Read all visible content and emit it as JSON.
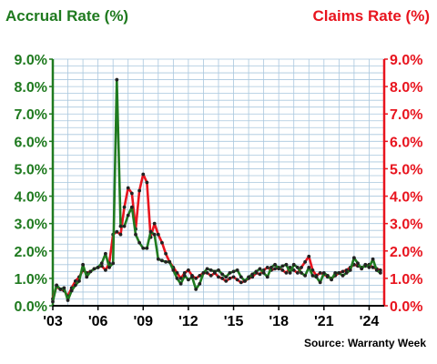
{
  "chart_data": {
    "type": "line",
    "title_left": "Accrual Rate (%)",
    "title_right": "Claims Rate (%)",
    "source": "Source: Warranty Week",
    "colors": {
      "accrual": "#1f7a1f",
      "claims": "#e8141e",
      "grid": "#a9c7de"
    },
    "y_ticks": [
      "0.0%",
      "1.0%",
      "2.0%",
      "3.0%",
      "4.0%",
      "5.0%",
      "6.0%",
      "7.0%",
      "8.0%",
      "9.0%"
    ],
    "x_ticks": [
      {
        "year": 2003,
        "label": "'03"
      },
      {
        "year": 2006,
        "label": "'06"
      },
      {
        "year": 2009,
        "label": "'09"
      },
      {
        "year": 2012,
        "label": "'12"
      },
      {
        "year": 2015,
        "label": "'15"
      },
      {
        "year": 2018,
        "label": "'18"
      },
      {
        "year": 2021,
        "label": "'21"
      },
      {
        "year": 2024,
        "label": "'24"
      }
    ],
    "xlim": [
      2003,
      2025
    ],
    "ylim": [
      0,
      9
    ],
    "series": [
      {
        "key": "claims",
        "points": [
          [
            2003.0,
            0.25
          ],
          [
            2003.25,
            0.7
          ],
          [
            2003.5,
            0.6
          ],
          [
            2003.75,
            0.55
          ],
          [
            2004.0,
            0.35
          ],
          [
            2004.25,
            0.65
          ],
          [
            2004.5,
            0.9
          ],
          [
            2004.75,
            1.05
          ],
          [
            2005.0,
            1.3
          ],
          [
            2005.25,
            1.2
          ],
          [
            2005.5,
            1.25
          ],
          [
            2005.75,
            1.35
          ],
          [
            2006.0,
            1.4
          ],
          [
            2006.25,
            1.45
          ],
          [
            2006.5,
            1.3
          ],
          [
            2006.75,
            1.55
          ],
          [
            2007.0,
            2.6
          ],
          [
            2007.25,
            2.7
          ],
          [
            2007.5,
            2.6
          ],
          [
            2007.75,
            3.6
          ],
          [
            2008.0,
            4.3
          ],
          [
            2008.25,
            4.1
          ],
          [
            2008.5,
            2.8
          ],
          [
            2008.75,
            4.2
          ],
          [
            2009.0,
            4.8
          ],
          [
            2009.25,
            4.5
          ],
          [
            2009.5,
            2.5
          ],
          [
            2009.75,
            3.0
          ],
          [
            2010.0,
            2.6
          ],
          [
            2010.25,
            2.3
          ],
          [
            2010.5,
            1.9
          ],
          [
            2010.75,
            1.6
          ],
          [
            2011.0,
            1.4
          ],
          [
            2011.25,
            1.2
          ],
          [
            2011.5,
            1.0
          ],
          [
            2011.75,
            1.2
          ],
          [
            2012.0,
            1.3
          ],
          [
            2012.25,
            1.1
          ],
          [
            2012.5,
            1.0
          ],
          [
            2012.75,
            1.1
          ],
          [
            2013.0,
            1.2
          ],
          [
            2013.25,
            1.2
          ],
          [
            2013.5,
            1.1
          ],
          [
            2013.75,
            1.2
          ],
          [
            2014.0,
            1.05
          ],
          [
            2014.25,
            1.0
          ],
          [
            2014.5,
            0.9
          ],
          [
            2014.75,
            1.0
          ],
          [
            2015.0,
            1.05
          ],
          [
            2015.25,
            0.95
          ],
          [
            2015.5,
            0.85
          ],
          [
            2015.75,
            0.9
          ],
          [
            2016.0,
            1.0
          ],
          [
            2016.25,
            1.05
          ],
          [
            2016.5,
            1.2
          ],
          [
            2016.75,
            1.15
          ],
          [
            2017.0,
            1.3
          ],
          [
            2017.25,
            1.4
          ],
          [
            2017.5,
            1.3
          ],
          [
            2017.75,
            1.35
          ],
          [
            2018.0,
            1.4
          ],
          [
            2018.25,
            1.3
          ],
          [
            2018.5,
            1.2
          ],
          [
            2018.75,
            1.4
          ],
          [
            2019.0,
            1.3
          ],
          [
            2019.25,
            1.2
          ],
          [
            2019.5,
            1.4
          ],
          [
            2019.75,
            1.6
          ],
          [
            2020.0,
            1.8
          ],
          [
            2020.25,
            1.3
          ],
          [
            2020.5,
            1.1
          ],
          [
            2020.75,
            1.2
          ],
          [
            2021.0,
            1.15
          ],
          [
            2021.25,
            1.05
          ],
          [
            2021.5,
            1.0
          ],
          [
            2021.75,
            1.1
          ],
          [
            2022.0,
            1.2
          ],
          [
            2022.25,
            1.25
          ],
          [
            2022.5,
            1.3
          ],
          [
            2022.75,
            1.4
          ],
          [
            2023.0,
            1.5
          ],
          [
            2023.25,
            1.45
          ],
          [
            2023.5,
            1.4
          ],
          [
            2023.75,
            1.45
          ],
          [
            2024.0,
            1.5
          ],
          [
            2024.25,
            1.4
          ],
          [
            2024.5,
            1.35
          ],
          [
            2024.75,
            1.3
          ]
        ]
      },
      {
        "key": "accrual",
        "points": [
          [
            2003.0,
            0.15
          ],
          [
            2003.25,
            0.75
          ],
          [
            2003.5,
            0.6
          ],
          [
            2003.75,
            0.65
          ],
          [
            2004.0,
            0.2
          ],
          [
            2004.25,
            0.55
          ],
          [
            2004.5,
            0.75
          ],
          [
            2004.75,
            0.9
          ],
          [
            2005.0,
            1.5
          ],
          [
            2005.25,
            1.05
          ],
          [
            2005.5,
            1.25
          ],
          [
            2005.75,
            1.35
          ],
          [
            2006.0,
            1.4
          ],
          [
            2006.25,
            1.55
          ],
          [
            2006.5,
            1.9
          ],
          [
            2006.75,
            1.4
          ],
          [
            2007.0,
            1.55
          ],
          [
            2007.25,
            8.25
          ],
          [
            2007.5,
            2.9
          ],
          [
            2007.75,
            2.9
          ],
          [
            2008.0,
            3.3
          ],
          [
            2008.25,
            3.6
          ],
          [
            2008.5,
            2.6
          ],
          [
            2008.75,
            2.3
          ],
          [
            2009.0,
            2.1
          ],
          [
            2009.25,
            2.1
          ],
          [
            2009.5,
            2.7
          ],
          [
            2009.75,
            2.6
          ],
          [
            2010.0,
            1.7
          ],
          [
            2010.25,
            1.65
          ],
          [
            2010.5,
            1.6
          ],
          [
            2010.75,
            1.6
          ],
          [
            2011.0,
            1.3
          ],
          [
            2011.25,
            1.0
          ],
          [
            2011.5,
            0.8
          ],
          [
            2011.75,
            1.1
          ],
          [
            2012.0,
            0.95
          ],
          [
            2012.25,
            1.05
          ],
          [
            2012.5,
            0.6
          ],
          [
            2012.75,
            0.8
          ],
          [
            2013.0,
            1.2
          ],
          [
            2013.25,
            1.35
          ],
          [
            2013.5,
            1.3
          ],
          [
            2013.75,
            1.25
          ],
          [
            2014.0,
            1.3
          ],
          [
            2014.25,
            1.15
          ],
          [
            2014.5,
            1.05
          ],
          [
            2014.75,
            1.2
          ],
          [
            2015.0,
            1.25
          ],
          [
            2015.25,
            1.3
          ],
          [
            2015.5,
            1.05
          ],
          [
            2015.75,
            0.9
          ],
          [
            2016.0,
            1.05
          ],
          [
            2016.25,
            1.15
          ],
          [
            2016.5,
            1.25
          ],
          [
            2016.75,
            1.35
          ],
          [
            2017.0,
            1.2
          ],
          [
            2017.25,
            1.05
          ],
          [
            2017.5,
            1.4
          ],
          [
            2017.75,
            1.5
          ],
          [
            2018.0,
            1.35
          ],
          [
            2018.25,
            1.45
          ],
          [
            2018.5,
            1.5
          ],
          [
            2018.75,
            1.2
          ],
          [
            2019.0,
            1.5
          ],
          [
            2019.25,
            1.4
          ],
          [
            2019.5,
            1.2
          ],
          [
            2019.75,
            1.1
          ],
          [
            2020.0,
            1.4
          ],
          [
            2020.25,
            1.1
          ],
          [
            2020.5,
            1.05
          ],
          [
            2020.75,
            0.85
          ],
          [
            2021.0,
            1.2
          ],
          [
            2021.25,
            1.1
          ],
          [
            2021.5,
            0.95
          ],
          [
            2021.75,
            1.2
          ],
          [
            2022.0,
            1.2
          ],
          [
            2022.25,
            1.1
          ],
          [
            2022.5,
            1.2
          ],
          [
            2022.75,
            1.3
          ],
          [
            2023.0,
            1.75
          ],
          [
            2023.25,
            1.55
          ],
          [
            2023.5,
            1.35
          ],
          [
            2023.75,
            1.5
          ],
          [
            2024.0,
            1.4
          ],
          [
            2024.25,
            1.7
          ],
          [
            2024.5,
            1.3
          ],
          [
            2024.75,
            1.2
          ]
        ]
      }
    ]
  }
}
